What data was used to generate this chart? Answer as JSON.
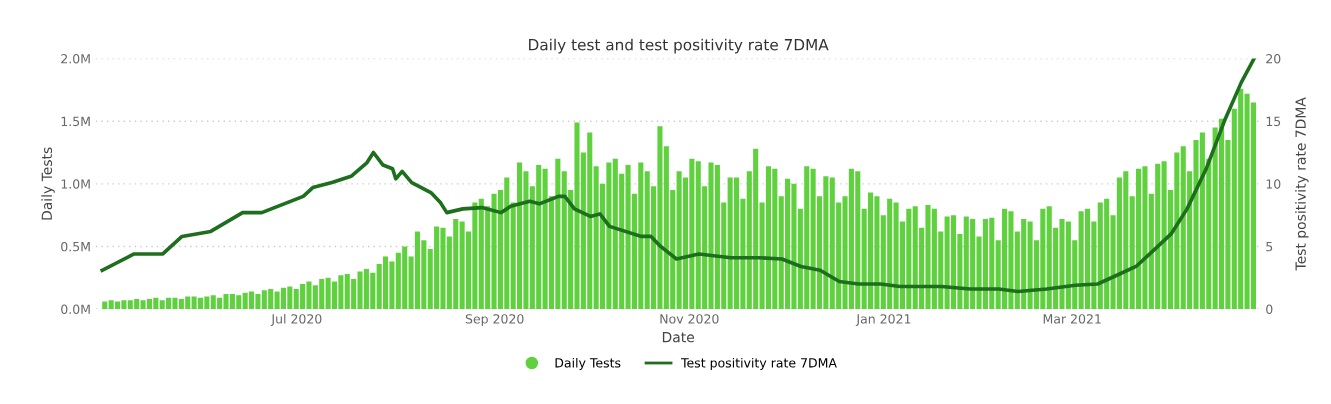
{
  "chart_data": {
    "type": "bar",
    "title": "Daily test and test positivity rate 7DMA",
    "xlabel": "Date",
    "ylabel": "Daily Tests",
    "y2label": "Test positivity rate 7DMA",
    "xlim": [
      "2020-04-29",
      "2021-04-29"
    ],
    "xticks": [
      {
        "value": "2020-07-01",
        "label": "Jul 2020"
      },
      {
        "value": "2020-09-01",
        "label": "Sep 2020"
      },
      {
        "value": "2020-11-01",
        "label": "Nov 2020"
      },
      {
        "value": "2021-01-01",
        "label": "Jan 2021"
      },
      {
        "value": "2021-03-01",
        "label": "Mar 2021"
      }
    ],
    "ylim": [
      0,
      2.0
    ],
    "yticks": [
      {
        "value": 0,
        "label": "0.0M"
      },
      {
        "value": 0.5,
        "label": "0.5M"
      },
      {
        "value": 1.0,
        "label": "1.0M"
      },
      {
        "value": 1.5,
        "label": "1.5M"
      },
      {
        "value": 2.0,
        "label": "2.0M"
      }
    ],
    "y2lim": [
      0,
      20
    ],
    "y2ticks": [
      0,
      5,
      10,
      15,
      20
    ],
    "grid": "y",
    "legend": "bottom",
    "series": [
      {
        "name": "Daily Tests",
        "color": "#5fd13e",
        "x": [
          "2020-05-01",
          "2020-05-03",
          "2020-05-05",
          "2020-05-07",
          "2020-05-09",
          "2020-05-11",
          "2020-05-13",
          "2020-05-15",
          "2020-05-17",
          "2020-05-19",
          "2020-05-21",
          "2020-05-23",
          "2020-05-25",
          "2020-05-27",
          "2020-05-29",
          "2020-05-31",
          "2020-06-02",
          "2020-06-04",
          "2020-06-06",
          "2020-06-08",
          "2020-06-10",
          "2020-06-12",
          "2020-06-14",
          "2020-06-16",
          "2020-06-18",
          "2020-06-20",
          "2020-06-22",
          "2020-06-24",
          "2020-06-26",
          "2020-06-28",
          "2020-06-30",
          "2020-07-02",
          "2020-07-04",
          "2020-07-06",
          "2020-07-08",
          "2020-07-10",
          "2020-07-12",
          "2020-07-14",
          "2020-07-16",
          "2020-07-18",
          "2020-07-20",
          "2020-07-22",
          "2020-07-24",
          "2020-07-26",
          "2020-07-28",
          "2020-07-30",
          "2020-08-01",
          "2020-08-03",
          "2020-08-05",
          "2020-08-07",
          "2020-08-09",
          "2020-08-11",
          "2020-08-13",
          "2020-08-15",
          "2020-08-17",
          "2020-08-19",
          "2020-08-21",
          "2020-08-23",
          "2020-08-25",
          "2020-08-27",
          "2020-08-29",
          "2020-08-31",
          "2020-09-02",
          "2020-09-04",
          "2020-09-06",
          "2020-09-08",
          "2020-09-10",
          "2020-09-12",
          "2020-09-14",
          "2020-09-16",
          "2020-09-18",
          "2020-09-20",
          "2020-09-22",
          "2020-09-24",
          "2020-09-26",
          "2020-09-28",
          "2020-09-30",
          "2020-10-02",
          "2020-10-04",
          "2020-10-06",
          "2020-10-08",
          "2020-10-10",
          "2020-10-12",
          "2020-10-14",
          "2020-10-16",
          "2020-10-18",
          "2020-10-20",
          "2020-10-22",
          "2020-10-24",
          "2020-10-26",
          "2020-10-28",
          "2020-10-30",
          "2020-11-01",
          "2020-11-03",
          "2020-11-05",
          "2020-11-07",
          "2020-11-09",
          "2020-11-11",
          "2020-11-13",
          "2020-11-15",
          "2020-11-17",
          "2020-11-19",
          "2020-11-21",
          "2020-11-23",
          "2020-11-25",
          "2020-11-27",
          "2020-11-29",
          "2020-12-01",
          "2020-12-03",
          "2020-12-05",
          "2020-12-07",
          "2020-12-09",
          "2020-12-11",
          "2020-12-13",
          "2020-12-15",
          "2020-12-17",
          "2020-12-19",
          "2020-12-21",
          "2020-12-23",
          "2020-12-25",
          "2020-12-27",
          "2020-12-29",
          "2020-12-31",
          "2021-01-02",
          "2021-01-04",
          "2021-01-06",
          "2021-01-08",
          "2021-01-10",
          "2021-01-12",
          "2021-01-14",
          "2021-01-16",
          "2021-01-18",
          "2021-01-20",
          "2021-01-22",
          "2021-01-24",
          "2021-01-26",
          "2021-01-28",
          "2021-01-30",
          "2021-02-01",
          "2021-02-03",
          "2021-02-05",
          "2021-02-07",
          "2021-02-09",
          "2021-02-11",
          "2021-02-13",
          "2021-02-15",
          "2021-02-17",
          "2021-02-19",
          "2021-02-21",
          "2021-02-23",
          "2021-02-25",
          "2021-02-27",
          "2021-03-01",
          "2021-03-03",
          "2021-03-05",
          "2021-03-07",
          "2021-03-09",
          "2021-03-11",
          "2021-03-13",
          "2021-03-15",
          "2021-03-17",
          "2021-03-19",
          "2021-03-21",
          "2021-03-23",
          "2021-03-25",
          "2021-03-27",
          "2021-03-29",
          "2021-03-31",
          "2021-04-02",
          "2021-04-04",
          "2021-04-06",
          "2021-04-08",
          "2021-04-10",
          "2021-04-12",
          "2021-04-14",
          "2021-04-16",
          "2021-04-18",
          "2021-04-20",
          "2021-04-22",
          "2021-04-24",
          "2021-04-26"
        ],
        "values": [
          0.06,
          0.07,
          0.06,
          0.07,
          0.07,
          0.08,
          0.07,
          0.08,
          0.09,
          0.07,
          0.09,
          0.09,
          0.08,
          0.1,
          0.1,
          0.09,
          0.1,
          0.11,
          0.09,
          0.12,
          0.12,
          0.11,
          0.13,
          0.14,
          0.12,
          0.15,
          0.16,
          0.14,
          0.17,
          0.18,
          0.16,
          0.2,
          0.22,
          0.19,
          0.24,
          0.25,
          0.22,
          0.27,
          0.28,
          0.24,
          0.3,
          0.32,
          0.29,
          0.36,
          0.42,
          0.38,
          0.45,
          0.5,
          0.42,
          0.62,
          0.55,
          0.48,
          0.66,
          0.65,
          0.58,
          0.72,
          0.7,
          0.62,
          0.85,
          0.88,
          0.82,
          0.92,
          0.95,
          1.05,
          0.85,
          1.17,
          1.1,
          0.98,
          1.15,
          1.12,
          0.9,
          1.2,
          1.1,
          0.95,
          1.49,
          1.25,
          1.41,
          1.14,
          1.0,
          1.17,
          1.2,
          1.08,
          1.15,
          0.92,
          1.17,
          1.1,
          0.98,
          1.46,
          1.3,
          0.95,
          1.1,
          1.05,
          1.2,
          1.18,
          0.98,
          1.17,
          1.15,
          0.85,
          1.05,
          1.05,
          0.88,
          1.1,
          1.28,
          0.85,
          1.14,
          1.12,
          0.9,
          1.04,
          1.0,
          0.8,
          1.14,
          1.12,
          0.9,
          1.06,
          1.05,
          0.85,
          0.9,
          1.12,
          1.1,
          0.8,
          0.93,
          0.9,
          0.75,
          0.88,
          0.85,
          0.7,
          0.8,
          0.82,
          0.65,
          0.83,
          0.8,
          0.62,
          0.74,
          0.75,
          0.6,
          0.74,
          0.72,
          0.58,
          0.72,
          0.73,
          0.55,
          0.8,
          0.78,
          0.62,
          0.72,
          0.7,
          0.55,
          0.8,
          0.82,
          0.65,
          0.72,
          0.7,
          0.55,
          0.78,
          0.8,
          0.7,
          0.85,
          0.88,
          0.75,
          1.05,
          1.1,
          0.9,
          1.12,
          1.14,
          0.92,
          1.16,
          1.18,
          0.95,
          1.25,
          1.3,
          1.1,
          1.35,
          1.41,
          1.2,
          1.45,
          1.52,
          1.35,
          1.6,
          1.76,
          1.72,
          1.65
        ]
      },
      {
        "name": "Test positivity rate 7DMA",
        "type": "line",
        "axis": "y2",
        "color": "#1d6e1d",
        "line_style": "solid",
        "marker": "none",
        "x": [
          "2020-05-01",
          "2020-05-11",
          "2020-05-20",
          "2020-05-26",
          "2020-06-04",
          "2020-06-14",
          "2020-06-20",
          "2020-07-03",
          "2020-07-06",
          "2020-07-12",
          "2020-07-18",
          "2020-07-23",
          "2020-07-25",
          "2020-07-28",
          "2020-07-31",
          "2020-08-01",
          "2020-08-03",
          "2020-08-06",
          "2020-08-12",
          "2020-08-15",
          "2020-08-17",
          "2020-08-22",
          "2020-08-28",
          "2020-09-03",
          "2020-09-06",
          "2020-09-12",
          "2020-09-15",
          "2020-09-21",
          "2020-09-23",
          "2020-09-26",
          "2020-10-01",
          "2020-10-04",
          "2020-10-07",
          "2020-10-17",
          "2020-10-20",
          "2020-10-23",
          "2020-10-28",
          "2020-11-04",
          "2020-11-14",
          "2020-11-23",
          "2020-11-30",
          "2020-12-06",
          "2020-12-12",
          "2020-12-18",
          "2020-12-24",
          "2020-12-31",
          "2021-01-06",
          "2021-01-19",
          "2021-01-28",
          "2021-01-31",
          "2021-02-06",
          "2021-02-12",
          "2021-02-21",
          "2021-03-02",
          "2021-03-09",
          "2021-03-15",
          "2021-03-21",
          "2021-03-27",
          "2021-04-01",
          "2021-04-06",
          "2021-04-12",
          "2021-04-18",
          "2021-04-23",
          "2021-04-27"
        ],
        "values": [
          3.1,
          4.4,
          4.4,
          5.8,
          6.2,
          7.7,
          7.7,
          9.0,
          9.7,
          10.1,
          10.6,
          11.7,
          12.5,
          11.5,
          11.2,
          10.4,
          11.0,
          10.1,
          9.3,
          8.5,
          7.7,
          8.0,
          8.1,
          7.7,
          8.2,
          8.6,
          8.4,
          9.0,
          9.0,
          8.0,
          7.4,
          7.6,
          6.6,
          5.8,
          5.8,
          5.0,
          4.0,
          4.4,
          4.1,
          4.1,
          4.0,
          3.4,
          3.1,
          2.2,
          2.0,
          2.0,
          1.8,
          1.8,
          1.6,
          1.6,
          1.6,
          1.4,
          1.6,
          1.9,
          2.0,
          2.7,
          3.4,
          4.8,
          6.0,
          8.0,
          11.2,
          15.2,
          18.1,
          20.0
        ]
      }
    ]
  }
}
